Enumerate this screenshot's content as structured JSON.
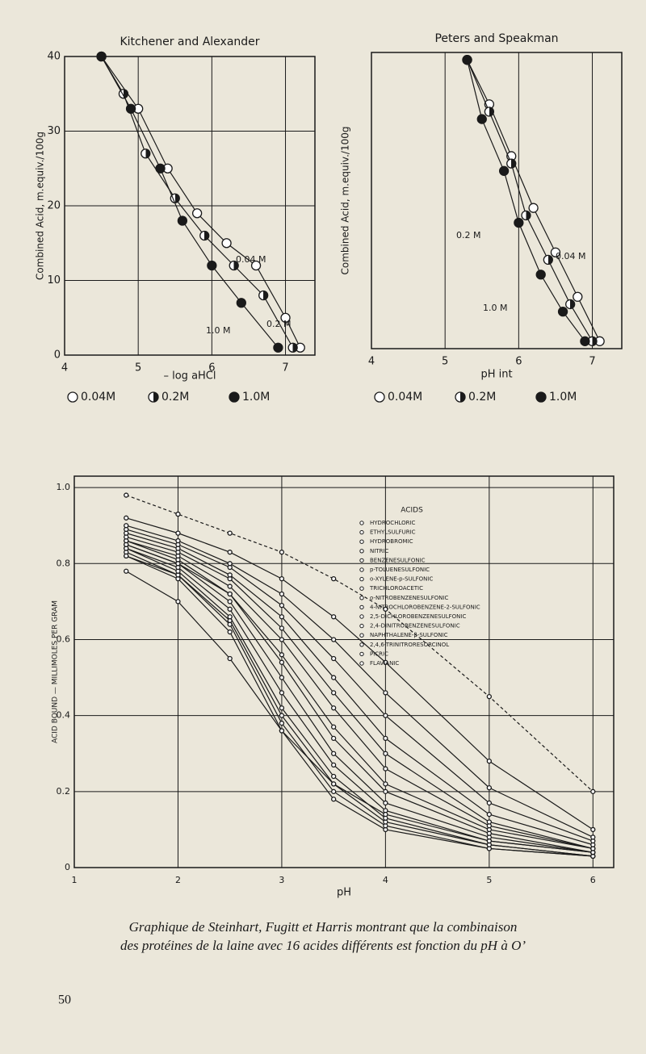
{
  "chart_data": [
    {
      "type": "line",
      "title": "Kitchener and Alexander",
      "x_label": "– log aHCl",
      "y_label": "Combined Acid, m.equiv./100g",
      "xlim": [
        4,
        7.4
      ],
      "ylim": [
        0,
        40
      ],
      "xticks": [
        4,
        5,
        6,
        7
      ],
      "yticks": [
        0,
        10,
        20,
        30,
        40
      ],
      "grid": true,
      "series": [
        {
          "name": "0.04M",
          "marker": "open",
          "color": "#1a1a1a",
          "x": [
            4.5,
            5,
            5.4,
            5.8,
            6.2,
            6.6,
            7,
            7.2
          ],
          "values": [
            40,
            33,
            25,
            19,
            15,
            12,
            5,
            1
          ]
        },
        {
          "name": "0.2M",
          "marker": "half",
          "color": "#1a1a1a",
          "x": [
            4.5,
            4.8,
            5.1,
            5.5,
            5.9,
            6.3,
            6.7,
            7.1
          ],
          "values": [
            40,
            35,
            27,
            21,
            16,
            12,
            8,
            1
          ]
        },
        {
          "name": "1.0M",
          "marker": "filled",
          "color": "#1a1a1a",
          "x": [
            4.5,
            4.9,
            5.3,
            5.6,
            6,
            6.4,
            6.9
          ],
          "values": [
            40,
            33,
            25,
            18,
            12,
            7,
            1
          ]
        }
      ],
      "annotations": [
        "0.04 M",
        "0.2 M",
        "1.0 M"
      ]
    },
    {
      "type": "line",
      "title": "Peters and Speakman",
      "x_label": "pH int",
      "y_label": "Combined Acid, m.equiv./100g",
      "xlim": [
        4,
        7.4
      ],
      "ylim": [
        0,
        40
      ],
      "xticks": [
        4,
        5,
        6,
        7
      ],
      "grid": true,
      "series": [
        {
          "name": "0.04M",
          "marker": "open",
          "color": "#1a1a1a",
          "x": [
            5.3,
            5.6,
            5.9,
            6.2,
            6.5,
            6.8,
            7.1
          ],
          "values": [
            39,
            33,
            26,
            19,
            13,
            7,
            1
          ]
        },
        {
          "name": "0.2M",
          "marker": "half",
          "color": "#1a1a1a",
          "x": [
            5.3,
            5.6,
            5.9,
            6.1,
            6.4,
            6.7,
            7
          ],
          "values": [
            39,
            32,
            25,
            18,
            12,
            6,
            1
          ]
        },
        {
          "name": "1.0M",
          "marker": "filled",
          "color": "#1a1a1a",
          "x": [
            5.3,
            5.5,
            5.8,
            6,
            6.3,
            6.6,
            6.9
          ],
          "values": [
            39,
            31,
            24,
            17,
            10,
            5,
            1
          ]
        }
      ],
      "annotations": [
        "0.04 M",
        "0.2 M",
        "1.0 M"
      ]
    },
    {
      "type": "line",
      "x_label": "pH",
      "y_label": "ACID BOUND — MILLIMOLES PER GRAM",
      "legend_title": "ACIDS",
      "xlim": [
        1,
        6.2
      ],
      "ylim": [
        0,
        1.03
      ],
      "xticks": [
        1,
        2,
        3,
        4,
        5,
        6
      ],
      "yticks": [
        0,
        0.2,
        0.4,
        0.6,
        0.8,
        {
          "value": 1,
          "label": "1.0"
        }
      ],
      "grid": true,
      "x": [
        1.5,
        2,
        2.5,
        3,
        3.5,
        4,
        5,
        6
      ],
      "series": [
        {
          "name": "HYDROCHLORIC",
          "color": "#1a1a1a",
          "values": [
            0.82,
            0.76,
            0.62,
            0.36,
            0.18,
            0.1,
            0.05,
            0.03
          ]
        },
        {
          "name": "ETHYLSULFURIC",
          "color": "#1a1a1a",
          "values": [
            0.83,
            0.77,
            0.64,
            0.38,
            0.2,
            0.11,
            0.05,
            0.03
          ]
        },
        {
          "name": "HYDROBROMIC",
          "color": "#1a1a1a",
          "values": [
            0.82,
            0.77,
            0.65,
            0.4,
            0.22,
            0.12,
            0.06,
            0.03
          ]
        },
        {
          "name": "NITRIC",
          "color": "#1a1a1a",
          "values": [
            0.84,
            0.78,
            0.66,
            0.42,
            0.24,
            0.13,
            0.06,
            0.03
          ]
        },
        {
          "name": "BENZENESULFONIC",
          "color": "#1a1a1a",
          "values": [
            0.84,
            0.79,
            0.68,
            0.46,
            0.27,
            0.15,
            0.07,
            0.04
          ]
        },
        {
          "name": "p-TOLUENESULFONIC",
          "color": "#1a1a1a",
          "values": [
            0.85,
            0.8,
            0.7,
            0.5,
            0.3,
            0.17,
            0.08,
            0.04
          ]
        },
        {
          "name": "o-XYLENE-p-SULFONIC",
          "color": "#1a1a1a",
          "values": [
            0.86,
            0.81,
            0.72,
            0.54,
            0.34,
            0.2,
            0.09,
            0.04
          ]
        },
        {
          "name": "TRICHLOROACETIC",
          "color": "#1a1a1a",
          "values": [
            0.78,
            0.7,
            0.55,
            0.36,
            0.22,
            0.14,
            0.07,
            0.04
          ]
        },
        {
          "name": "o-NITROBENZENESULFONIC",
          "color": "#1a1a1a",
          "values": [
            0.85,
            0.8,
            0.72,
            0.56,
            0.37,
            0.22,
            0.1,
            0.05
          ]
        },
        {
          "name": "4-NITROCHLOROBENZENE-2-SULFONIC",
          "color": "#1a1a1a",
          "values": [
            0.86,
            0.82,
            0.74,
            0.6,
            0.42,
            0.26,
            0.11,
            0.05
          ]
        },
        {
          "name": "2,5-DICHLOROBENZENESULFONIC",
          "color": "#1a1a1a",
          "values": [
            0.87,
            0.83,
            0.76,
            0.63,
            0.46,
            0.3,
            0.12,
            0.05
          ]
        },
        {
          "name": "2,4-DINITROBENZENESULFONIC",
          "color": "#1a1a1a",
          "values": [
            0.88,
            0.84,
            0.77,
            0.66,
            0.5,
            0.34,
            0.14,
            0.06
          ]
        },
        {
          "name": "NAPHTHALENE-β-SULFONIC",
          "color": "#1a1a1a",
          "values": [
            0.89,
            0.85,
            0.79,
            0.69,
            0.55,
            0.4,
            0.17,
            0.07
          ]
        },
        {
          "name": "2,4,6-TRINITRORESORCINOL",
          "color": "#1a1a1a",
          "values": [
            0.9,
            0.86,
            0.8,
            0.72,
            0.6,
            0.46,
            0.21,
            0.08
          ]
        },
        {
          "name": "PICRIC",
          "color": "#1a1a1a",
          "values": [
            0.92,
            0.88,
            0.83,
            0.76,
            0.66,
            0.54,
            0.28,
            0.1
          ]
        },
        {
          "name": "FLAVIANIC",
          "color": "#1a1a1a",
          "line_style": "dashed",
          "values": [
            0.98,
            0.93,
            0.88,
            0.83,
            0.76,
            0.68,
            0.45,
            0.2
          ]
        }
      ]
    }
  ],
  "caption": [
    "Graphique de Steinhart, Fugitt et Harris montrant que la combinaison",
    "des protéines de la laine avec 16 acides différents est fonction du pH à O’"
  ],
  "page_number": "50"
}
